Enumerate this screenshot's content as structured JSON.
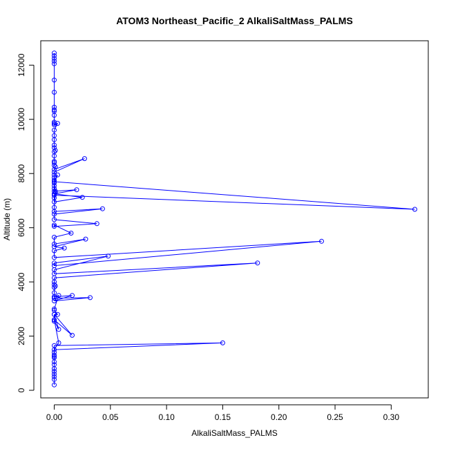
{
  "chart_data": {
    "type": "line",
    "title": "ATOM3 Northeast_Pacific_2 AlkaliSaltMass_PALMS",
    "xlabel": "AlkaliSaltMass_PALMS",
    "ylabel": "Altitude (m)",
    "xlim": [
      -0.012,
      0.333
    ],
    "ylim": [
      -280,
      12900
    ],
    "xticks": [
      0.0,
      0.05,
      0.1,
      0.15,
      0.2,
      0.25,
      0.3
    ],
    "xtick_labels": [
      "0.00",
      "0.05",
      "0.10",
      "0.15",
      "0.20",
      "0.25",
      "0.30"
    ],
    "yticks": [
      0,
      2000,
      4000,
      6000,
      8000,
      10000,
      12000
    ],
    "ytick_labels": [
      "0",
      "2000",
      "4000",
      "6000",
      "8000",
      "10000",
      "12000"
    ],
    "marker": "open-circle",
    "grid": false,
    "colors": {
      "series": "#0000ff",
      "axis": "#000000",
      "background": "#ffffff"
    },
    "series": [
      {
        "x": [
          0.0,
          0.0,
          0.0,
          0.0,
          0.0,
          0.0,
          0.0,
          0.0,
          0.0,
          0.0,
          0.0,
          0.0,
          0.0,
          0.0,
          0.003,
          0.0,
          0.0,
          0.0,
          0.0,
          0.0,
          0.001,
          0.0,
          0.0,
          0.0,
          0.0,
          0.0,
          0.001,
          0.0,
          0.027,
          0.0,
          0.0,
          0.0,
          0.0,
          0.003,
          0.0,
          0.0,
          0.0,
          0.0,
          0.001,
          0.0,
          0.321,
          0.0,
          0.0,
          0.0,
          0.025,
          0.0,
          0.02,
          0.001,
          0.0,
          0.0,
          0.043,
          0.0,
          0.0,
          0.038,
          0.0,
          0.0,
          0.015,
          0.0,
          0.0,
          0.028,
          0.0,
          0.009,
          0.0,
          0.0,
          0.238,
          0.0,
          0.0,
          0.048,
          0.0,
          0.0,
          0.181,
          0.0,
          0.0,
          0.0,
          0.001,
          0.0,
          0.0,
          0.0,
          0.0,
          0.032,
          0.0,
          0.016,
          0.0,
          0.004,
          0.0,
          0.0,
          0.003,
          0.0,
          0.0,
          0.0,
          0.004,
          0.0,
          0.016,
          0.0,
          0.004,
          0.0,
          0.15,
          0.0,
          0.0,
          0.0,
          0.0,
          0.0,
          0.0,
          0.0,
          0.0,
          0.0,
          0.0,
          0.0,
          0.0,
          0.0
        ],
        "y": [
          12450,
          12350,
          12250,
          12150,
          12050,
          11450,
          11000,
          10450,
          10350,
          10300,
          10150,
          9900,
          9850,
          9800,
          9850,
          9600,
          9400,
          9250,
          9050,
          8950,
          8850,
          8800,
          8650,
          8450,
          8400,
          8300,
          8250,
          8150,
          8550,
          8050,
          7950,
          7850,
          7750,
          7950,
          7650,
          7550,
          7450,
          7350,
          7300,
          7700,
          6680,
          7200,
          7100,
          6950,
          7120,
          7250,
          7400,
          7350,
          6750,
          6600,
          6700,
          6500,
          6300,
          6150,
          6050,
          6100,
          5800,
          5650,
          5400,
          5580,
          5300,
          5250,
          5150,
          4900,
          5500,
          4600,
          4700,
          4950,
          4450,
          4300,
          4700,
          4150,
          4000,
          3900,
          3850,
          3800,
          3600,
          3450,
          3400,
          3420,
          3300,
          3500,
          3450,
          3500,
          3000,
          2950,
          2800,
          2800,
          2600,
          2550,
          2250,
          2800,
          2030,
          2600,
          1750,
          1500,
          1750,
          1650,
          1400,
          1300,
          1250,
          1200,
          1050,
          950,
          800,
          700,
          600,
          500,
          400,
          200
        ]
      }
    ]
  }
}
